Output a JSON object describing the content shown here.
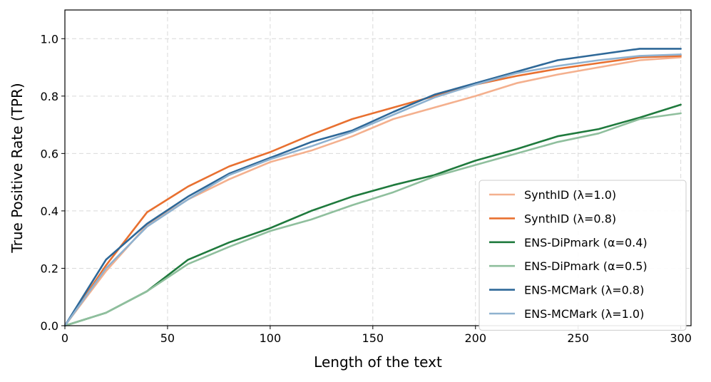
{
  "chart_data": {
    "type": "line",
    "xlabel": "Length of the text",
    "ylabel": "True Positive Rate (TPR)",
    "xlim": [
      0,
      305
    ],
    "ylim": [
      0,
      1.1
    ],
    "xticks": [
      0,
      50,
      100,
      150,
      200,
      250,
      300
    ],
    "yticks": [
      0.0,
      0.2,
      0.4,
      0.6,
      0.8,
      1.0
    ],
    "xtick_labels": [
      "0",
      "50",
      "100",
      "150",
      "200",
      "250",
      "300"
    ],
    "ytick_labels": [
      "0.0",
      "0.2",
      "0.4",
      "0.6",
      "0.8",
      "1.0"
    ],
    "grid": true,
    "legend_position": "lower-right",
    "x": [
      0,
      20,
      40,
      60,
      80,
      100,
      120,
      140,
      160,
      180,
      200,
      220,
      240,
      260,
      280,
      300
    ],
    "series": [
      {
        "name": "SynthID (λ=1.0)",
        "color": "#f4b08e",
        "values": [
          0.0,
          0.19,
          0.35,
          0.44,
          0.51,
          0.57,
          0.61,
          0.66,
          0.72,
          0.76,
          0.8,
          0.845,
          0.875,
          0.9,
          0.925,
          0.935
        ]
      },
      {
        "name": "SynthID (λ=0.8)",
        "color": "#e87030",
        "values": [
          0.0,
          0.21,
          0.395,
          0.485,
          0.555,
          0.605,
          0.665,
          0.72,
          0.76,
          0.8,
          0.84,
          0.87,
          0.895,
          0.915,
          0.935,
          0.94
        ]
      },
      {
        "name": "ENS-DiPmark (α=0.4)",
        "color": "#1f7a3d",
        "values": [
          0.0,
          0.045,
          0.12,
          0.23,
          0.29,
          0.34,
          0.4,
          0.45,
          0.49,
          0.525,
          0.575,
          0.615,
          0.66,
          0.685,
          0.725,
          0.77
        ]
      },
      {
        "name": "ENS-DiPmark (α=0.5)",
        "color": "#8fbf9d",
        "values": [
          0.0,
          0.045,
          0.12,
          0.215,
          0.275,
          0.33,
          0.37,
          0.42,
          0.465,
          0.52,
          0.56,
          0.6,
          0.64,
          0.67,
          0.72,
          0.74
        ]
      },
      {
        "name": "ENS-MCMark (λ=0.8)",
        "color": "#2e6898",
        "values": [
          0.0,
          0.23,
          0.355,
          0.45,
          0.53,
          0.585,
          0.64,
          0.68,
          0.745,
          0.805,
          0.845,
          0.885,
          0.925,
          0.945,
          0.965,
          0.965
        ]
      },
      {
        "name": "ENS-MCMark (λ=1.0)",
        "color": "#8fb2d0",
        "values": [
          0.0,
          0.2,
          0.345,
          0.44,
          0.525,
          0.58,
          0.625,
          0.675,
          0.735,
          0.795,
          0.84,
          0.88,
          0.905,
          0.925,
          0.94,
          0.945
        ]
      }
    ]
  }
}
